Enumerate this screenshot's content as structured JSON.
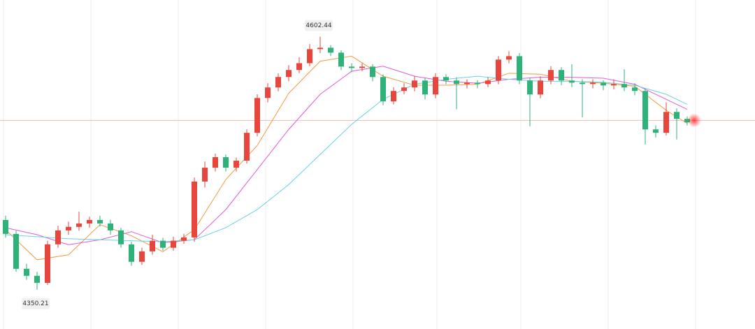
{
  "chart_data": {
    "type": "candlestick",
    "up_color": "#e8453c",
    "down_color": "#2db37a",
    "ylim": [
      4311,
      4639
    ],
    "candles": [
      [
        4419.7,
        4424,
        4402,
        4405.8
      ],
      [
        4405.8,
        4409,
        4368,
        4371
      ],
      [
        4371,
        4376,
        4360,
        4364
      ],
      [
        4364,
        4368,
        4350.21,
        4357
      ],
      [
        4357,
        4399,
        4355,
        4395.4
      ],
      [
        4395.4,
        4414,
        4392,
        4409.3
      ],
      [
        4409.3,
        4418,
        4405,
        4412.8
      ],
      [
        4412.8,
        4428,
        4409,
        4416.2
      ],
      [
        4416.2,
        4423,
        4412,
        4419.7
      ],
      [
        4419.7,
        4424,
        4413,
        4416.2
      ],
      [
        4416.2,
        4420,
        4405,
        4409.3
      ],
      [
        4409.3,
        4412,
        4392,
        4395.4
      ],
      [
        4395.4,
        4398,
        4374,
        4378
      ],
      [
        4378,
        4392,
        4375,
        4388.4
      ],
      [
        4388.4,
        4405,
        4385,
        4399
      ],
      [
        4399,
        4402,
        4389,
        4392
      ],
      [
        4392,
        4403,
        4389,
        4399
      ],
      [
        4399,
        4406,
        4396,
        4402.3
      ],
      [
        4402.3,
        4462,
        4398,
        4458
      ],
      [
        4458,
        4478,
        4452,
        4471.8
      ],
      [
        4471.8,
        4486,
        4468,
        4482.3
      ],
      [
        4482.3,
        4485,
        4468,
        4471.8
      ],
      [
        4471.8,
        4482,
        4468,
        4478.8
      ],
      [
        4478.8,
        4510,
        4476,
        4506.6
      ],
      [
        4506.6,
        4545,
        4503,
        4541.3
      ],
      [
        4541.3,
        4556,
        4537,
        4551.8
      ],
      [
        4551.8,
        4566,
        4548,
        4562.2
      ],
      [
        4562.2,
        4574,
        4558,
        4569.2
      ],
      [
        4569.2,
        4582,
        4566,
        4576
      ],
      [
        4576,
        4595,
        4573,
        4590
      ],
      [
        4590,
        4602.44,
        4586,
        4591.4
      ],
      [
        4591.4,
        4594,
        4583,
        4586.5
      ],
      [
        4586.5,
        4589,
        4569,
        4572.6
      ],
      [
        4572.6,
        4576,
        4567,
        4571.2
      ],
      [
        4571.2,
        4576,
        4568,
        4572.6
      ],
      [
        4572.6,
        4575,
        4558,
        4562.2
      ],
      [
        4562.2,
        4565,
        4534,
        4537.9
      ],
      [
        4537.9,
        4552,
        4535,
        4548.3
      ],
      [
        4548.3,
        4556,
        4545,
        4551.8
      ],
      [
        4551.8,
        4563,
        4548,
        4558.7
      ],
      [
        4558.7,
        4561,
        4540,
        4544.8
      ],
      [
        4544.8,
        4566,
        4541,
        4562.2
      ],
      [
        4562.2,
        4565,
        4555,
        4558.7
      ],
      [
        4558.7,
        4562,
        4530,
        4555.2
      ],
      [
        4555.2,
        4560,
        4551,
        4556.6
      ],
      [
        4556.6,
        4559,
        4551,
        4555.2
      ],
      [
        4555.2,
        4562,
        4552,
        4558.7
      ],
      [
        4558.7,
        4583,
        4555,
        4579.6
      ],
      [
        4579.6,
        4588,
        4576,
        4583
      ],
      [
        4583,
        4586,
        4555,
        4558.7
      ],
      [
        4558.7,
        4561,
        4513,
        4544.8
      ],
      [
        4544.8,
        4563,
        4541,
        4558.7
      ],
      [
        4558.7,
        4573,
        4555,
        4569.2
      ],
      [
        4569.2,
        4572,
        4554,
        4558.7
      ],
      [
        4558.7,
        4575,
        4552,
        4556.6
      ],
      [
        4556.6,
        4560,
        4522,
        4555.2
      ],
      [
        4555.2,
        4560,
        4551,
        4556.6
      ],
      [
        4556.6,
        4559,
        4549,
        4553.8
      ],
      [
        4553.8,
        4560,
        4550,
        4555.2
      ],
      [
        4555.2,
        4570,
        4548,
        4551.8
      ],
      [
        4551.8,
        4556,
        4544,
        4548.3
      ],
      [
        4548.3,
        4551,
        4495,
        4510
      ],
      [
        4510,
        4514,
        4502,
        4506.6
      ],
      [
        4506.6,
        4537,
        4504,
        4527.4
      ],
      [
        4527.4,
        4531,
        4500,
        4520.5
      ],
      [
        4520.5,
        4523,
        4514,
        4517
      ]
    ],
    "ma_x": [
      0,
      3,
      6,
      9,
      12,
      15,
      18,
      21,
      24,
      27,
      30,
      33,
      36,
      39,
      42,
      45,
      48,
      51,
      54,
      57,
      60,
      63,
      65
    ],
    "moving_averages": [
      {
        "color": "#f29a3f",
        "values": [
          4410,
          4380,
          4385,
          4415,
          4404,
          4388,
          4410,
          4460,
          4494,
          4546,
          4578,
          4583,
          4563,
          4554,
          4554,
          4555,
          4566,
          4565,
          4558,
          4556,
          4553,
          4529,
          4516
        ]
      },
      {
        "color": "#e25ad6",
        "values": [
          4412,
          4405,
          4395,
          4400,
          4408,
          4397,
          4400,
          4430,
          4470,
          4510,
          4545,
          4568,
          4573,
          4563,
          4558,
          4556,
          4560,
          4562,
          4562,
          4561,
          4555,
          4540,
          4530
        ]
      },
      {
        "color": "#6ad2e4",
        "values": [
          4405,
          4403,
          4401,
          4400,
          4399,
          4398,
          4400,
          4412,
          4430,
          4455,
          4485,
          4515,
          4540,
          4555,
          4560,
          4563,
          4560,
          4558,
          4558,
          4557,
          4554,
          4545,
          4535
        ]
      }
    ],
    "price_line": 4519,
    "price_line_color": "#f2b8b8"
  }
}
